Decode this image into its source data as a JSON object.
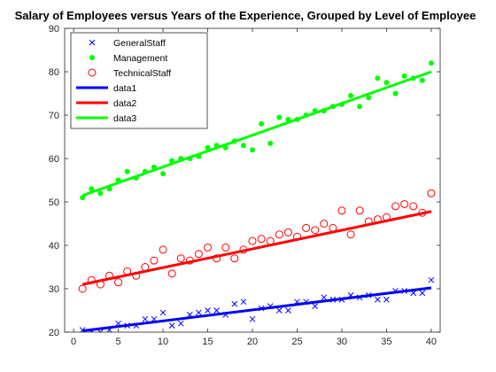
{
  "chart_data": {
    "type": "scatter",
    "title": "Salary of  Employees versus Years of the Experience, Grouped by Level of Employee",
    "xlabel": "",
    "ylabel": "",
    "xlim": [
      -1,
      41
    ],
    "ylim": [
      20,
      90
    ],
    "x_ticks": [
      0,
      5,
      10,
      15,
      20,
      25,
      30,
      35,
      40
    ],
    "y_ticks": [
      20,
      30,
      40,
      50,
      60,
      70,
      80,
      90
    ],
    "grid": false,
    "legend_position": "top-left",
    "series": [
      {
        "name": "GeneralStaff",
        "marker": "x",
        "color": "#0000ff",
        "x": [
          1,
          2,
          3,
          4,
          5,
          6,
          7,
          8,
          9,
          10,
          11,
          12,
          13,
          14,
          15,
          16,
          17,
          18,
          19,
          20,
          21,
          22,
          23,
          24,
          25,
          26,
          27,
          28,
          29,
          30,
          31,
          32,
          33,
          34,
          35,
          36,
          37,
          38,
          39,
          40
        ],
        "y": [
          20.5,
          20.0,
          20.0,
          20.5,
          22.0,
          21.5,
          21.5,
          23.0,
          23.0,
          24.5,
          21.5,
          22.0,
          24.0,
          24.5,
          25.0,
          25.0,
          24.0,
          26.5,
          27.0,
          23.0,
          25.5,
          26.0,
          25.0,
          25.0,
          27.0,
          27.0,
          26.0,
          28.0,
          27.5,
          27.5,
          28.5,
          28.0,
          28.5,
          27.5,
          27.5,
          29.5,
          29.5,
          29.0,
          29.0,
          32.0
        ]
      },
      {
        "name": "Management",
        "marker": "dot",
        "color": "#00ff00",
        "x": [
          1,
          2,
          3,
          4,
          5,
          6,
          7,
          8,
          9,
          10,
          11,
          12,
          13,
          14,
          15,
          16,
          17,
          18,
          19,
          20,
          21,
          22,
          23,
          24,
          25,
          26,
          27,
          28,
          29,
          30,
          31,
          32,
          33,
          34,
          35,
          36,
          37,
          38,
          39,
          40
        ],
        "y": [
          51.0,
          53.0,
          52.0,
          53.0,
          55.0,
          57.0,
          55.5,
          57.0,
          58.0,
          56.5,
          59.5,
          60.0,
          60.0,
          60.5,
          62.5,
          63.0,
          62.5,
          64.0,
          63.0,
          62.0,
          68.0,
          63.5,
          69.5,
          69.0,
          69.0,
          70.0,
          71.0,
          71.0,
          72.0,
          72.5,
          74.5,
          72.0,
          74.0,
          78.5,
          77.5,
          75.0,
          79.0,
          78.5,
          78.0,
          82.0
        ]
      },
      {
        "name": "TechnicalStaff",
        "marker": "circle",
        "color": "#ff0000",
        "x": [
          1,
          2,
          3,
          4,
          5,
          6,
          7,
          8,
          9,
          10,
          11,
          12,
          13,
          14,
          15,
          16,
          17,
          18,
          19,
          20,
          21,
          22,
          23,
          24,
          25,
          26,
          27,
          28,
          29,
          30,
          31,
          32,
          33,
          34,
          35,
          36,
          37,
          38,
          39,
          40
        ],
        "y": [
          30.0,
          32.0,
          31.0,
          33.0,
          31.5,
          34.0,
          33.0,
          35.0,
          36.5,
          39.0,
          33.5,
          37.0,
          36.5,
          38.0,
          39.5,
          37.0,
          39.5,
          37.0,
          39.0,
          41.0,
          41.5,
          41.0,
          42.5,
          43.0,
          42.0,
          44.0,
          43.5,
          45.0,
          44.0,
          48.0,
          42.5,
          48.0,
          45.5,
          46.0,
          46.5,
          49.0,
          49.5,
          49.0,
          47.5,
          52.0
        ]
      },
      {
        "name": "data1",
        "kind": "line",
        "color": "#0000ff",
        "x": [
          1,
          40
        ],
        "y": [
          20.3,
          30.2
        ]
      },
      {
        "name": "data2",
        "kind": "line",
        "color": "#ff0000",
        "x": [
          1,
          40
        ],
        "y": [
          31.0,
          47.8
        ]
      },
      {
        "name": "data3",
        "kind": "line",
        "color": "#00ff00",
        "x": [
          1,
          40
        ],
        "y": [
          51.5,
          80.0
        ]
      }
    ]
  }
}
